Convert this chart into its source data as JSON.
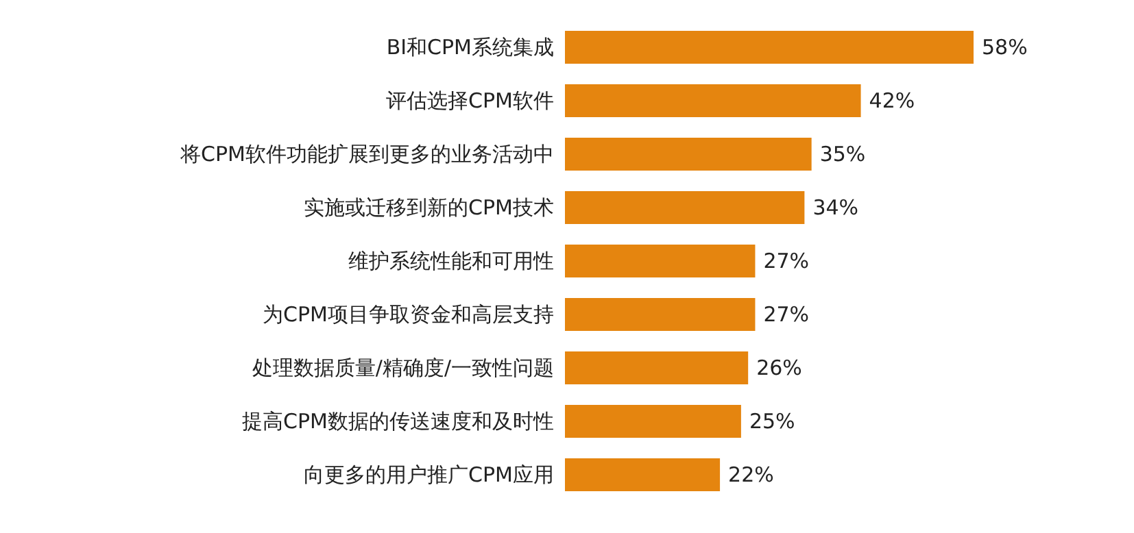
{
  "chart_data": {
    "type": "bar",
    "orientation": "horizontal",
    "color": "#e5850f",
    "categories": [
      "BI和CPM系统集成",
      "评估选择CPM软件",
      "将CPM软件功能扩展到更多的业务活动中",
      "实施或迁移到新的CPM技术",
      "维护系统性能和可用性",
      "为CPM项目争取资金和高层支持",
      "处理数据质量/精确度/一致性问题",
      "提高CPM数据的传送速度和及时性",
      "向更多的用户推广CPM应用"
    ],
    "values": [
      58,
      42,
      35,
      34,
      27,
      27,
      26,
      25,
      22
    ],
    "value_labels": [
      "58%",
      "42%",
      "35%",
      "34%",
      "27%",
      "27%",
      "26%",
      "25%",
      "22%"
    ]
  }
}
